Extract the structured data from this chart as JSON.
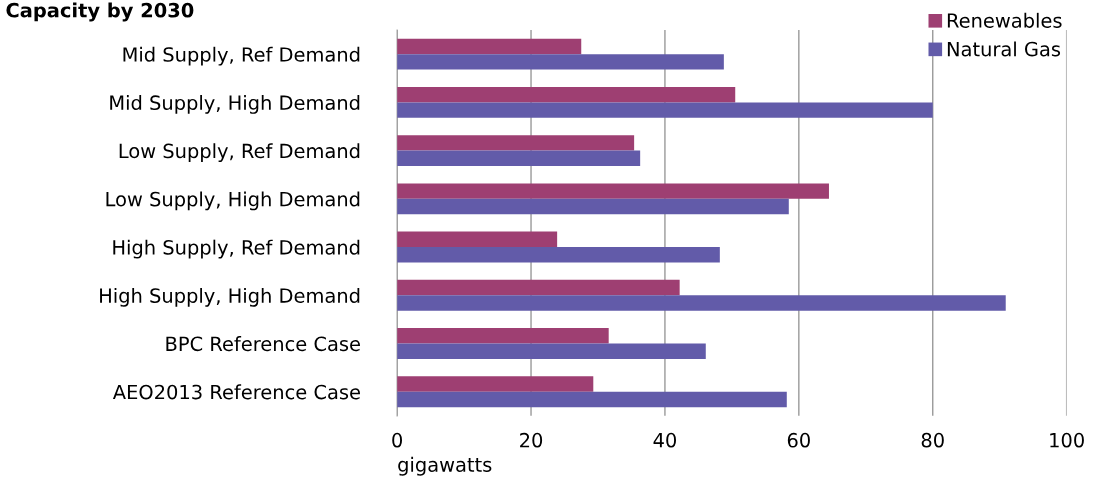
{
  "chart_data": {
    "type": "bar",
    "orientation": "horizontal",
    "title": "Capacity by 2030",
    "xlabel": "gigawatts",
    "categories": [
      "Mid Supply, Ref Demand",
      "Mid Supply, High Demand",
      "Low Supply, Ref Demand",
      "Low Supply, High Demand",
      "High Supply, Ref Demand",
      "High Supply, High Demand",
      "BPC Reference Case",
      "AEO2013 Reference Case"
    ],
    "series": [
      {
        "name": "Renewables",
        "color": "#9e3f72",
        "values": [
          27.5,
          50.5,
          35.4,
          64.5,
          23.9,
          42.2,
          31.6,
          29.3
        ]
      },
      {
        "name": "Natural Gas",
        "color": "#625ba9",
        "values": [
          48.8,
          80,
          36.3,
          58.5,
          48.2,
          90.9,
          46.1,
          58.2
        ]
      }
    ],
    "xlim": [
      0,
      100
    ],
    "xticks": [
      0,
      20,
      40,
      60,
      80,
      100
    ],
    "grid": "x",
    "legend": "top right"
  }
}
